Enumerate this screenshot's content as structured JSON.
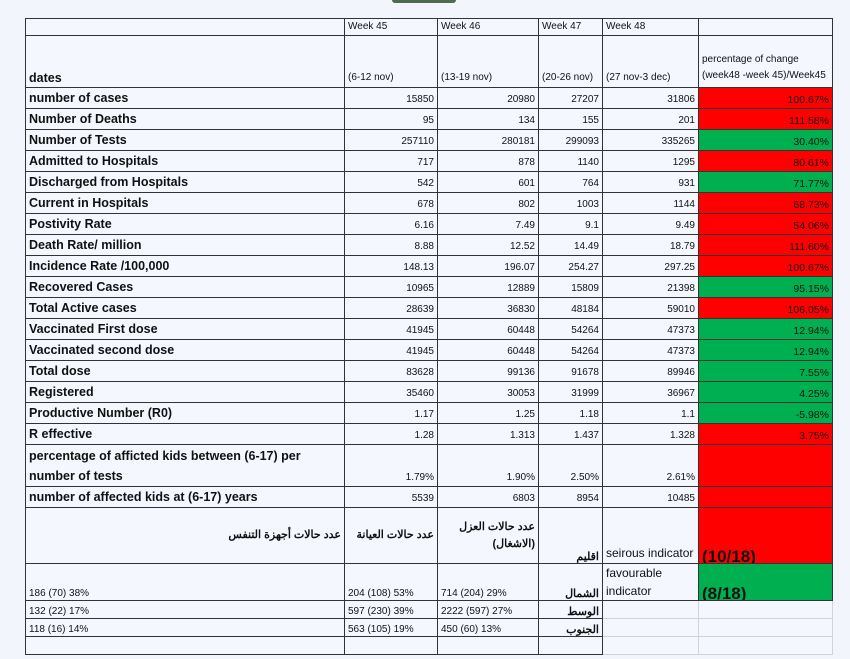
{
  "header": {
    "weeks": [
      "Week 45",
      "Week 46",
      "Week 47",
      "Week 48"
    ],
    "dates_label": "dates",
    "ranges": [
      "(6-12 nov)",
      "(13-19 nov)",
      "(20-26 nov)",
      "(27 nov-3 dec)"
    ],
    "change_label": "percentage of change (week48 -week 45)/Week45"
  },
  "rows": [
    {
      "label": "number of cases",
      "values": [
        "15850",
        "20980",
        "27207",
        "31806"
      ],
      "change": "100.67%",
      "status": "red"
    },
    {
      "label": "Number of Deaths",
      "values": [
        "95",
        "134",
        "155",
        "201"
      ],
      "change": "111.58%",
      "status": "red"
    },
    {
      "label": "Number of Tests",
      "values": [
        "257110",
        "280181",
        "299093",
        "335265"
      ],
      "change": "30.40%",
      "status": "green"
    },
    {
      "label": "Admitted to Hospitals",
      "values": [
        "717",
        "878",
        "1140",
        "1295"
      ],
      "change": "80.61%",
      "status": "red"
    },
    {
      "label": "Discharged from Hospitals",
      "values": [
        "542",
        "601",
        "764",
        "931"
      ],
      "change": "71.77%",
      "status": "green"
    },
    {
      "label": "Current in Hospitals",
      "values": [
        "678",
        "802",
        "1003",
        "1144"
      ],
      "change": "68.73%",
      "status": "red"
    },
    {
      "label": "Postivity Rate",
      "values": [
        "6.16",
        "7.49",
        "9.1",
        "9.49"
      ],
      "change": "54.06%",
      "status": "red"
    },
    {
      "label": "Death Rate/ million",
      "values": [
        "8.88",
        "12.52",
        "14.49",
        "18.79"
      ],
      "change": "111.60%",
      "status": "red"
    },
    {
      "label": "Incidence Rate /100,000",
      "values": [
        "148.13",
        "196.07",
        "254.27",
        "297.25"
      ],
      "change": "100.67%",
      "status": "red"
    },
    {
      "label": "Recovered Cases",
      "values": [
        "10965",
        "12889",
        "15809",
        "21398"
      ],
      "change": "95.15%",
      "status": "green"
    },
    {
      "label": "Total Active cases",
      "values": [
        "28639",
        "36830",
        "48184",
        "59010"
      ],
      "change": "106.05%",
      "status": "red"
    },
    {
      "label": "Vaccinated First dose",
      "values": [
        "41945",
        "60448",
        "54264",
        "47373"
      ],
      "change": "12.94%",
      "status": "green"
    },
    {
      "label": "Vaccinated second dose",
      "values": [
        "41945",
        "60448",
        "54264",
        "47373"
      ],
      "change": "12.94%",
      "status": "green"
    },
    {
      "label": "Total dose",
      "values": [
        "83628",
        "99136",
        "91678",
        "89946"
      ],
      "change": "7.55%",
      "status": "green"
    },
    {
      "label": "Registered",
      "values": [
        "35460",
        "30053",
        "31999",
        "36967"
      ],
      "change": "4.25%",
      "status": "green"
    },
    {
      "label": "Productive Number (R0)",
      "values": [
        "1.17",
        "1.25",
        "1.18",
        "1.1"
      ],
      "change": "-5.98%",
      "status": "green"
    },
    {
      "label": "R effective",
      "values": [
        "1.28",
        "1.313",
        "1.437",
        "1.328"
      ],
      "change": "3.75%",
      "status": "red"
    },
    {
      "label": "percentage of afficted kids between (6-17) per number of tests",
      "values": [
        "1.79%",
        "1.90%",
        "2.50%",
        "2.61%"
      ],
      "change": "",
      "status": "red",
      "tall": true
    },
    {
      "label": "number of affected kids at (6-17) years",
      "values": [
        "5539",
        "6803",
        "8954",
        "10485"
      ],
      "change": "",
      "status": "red"
    }
  ],
  "regional": {
    "headers": [
      "عدد حالات أجهزة التنفس",
      "عدد حالات العيانة",
      "عدد حالات العزل (الاشغال)",
      "اقليم"
    ],
    "serious_label": "seirous indicator",
    "serious_value": "(10/18)",
    "favourable_label": "favourable indicator",
    "favourable_value": "(8/18)",
    "rows": [
      {
        "region": "الشمال",
        "ventilator": "186 (70) 38%",
        "icu": "204 (108) 53%",
        "isolation": "714 (204) 29%"
      },
      {
        "region": "الوسط",
        "ventilator": "132 (22) 17%",
        "icu": "597 (230) 39%",
        "isolation": "2222 (597) 27%"
      },
      {
        "region": "الجنوب",
        "ventilator": "118 (16) 14%",
        "icu": "563 (105) 19%",
        "isolation": "450 (60) 13%"
      }
    ]
  },
  "colors": {
    "red": "#ff0000",
    "green": "#00b050"
  }
}
